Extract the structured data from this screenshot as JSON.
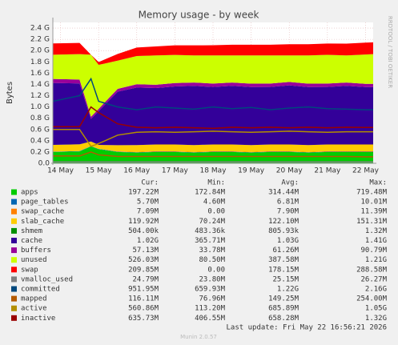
{
  "chart_data": {
    "type": "area",
    "title": "Memory usage - by week",
    "y_label": "Bytes",
    "side_label": "RRDTOOL / TOBI OETIKER",
    "last_update": "Last update: Fri May 22 16:56:21 2026",
    "footer": "Munin 2.0.57",
    "stat_headers": [
      "Cur:",
      "Min:",
      "Avg:",
      "Max:"
    ],
    "x": [
      13.8,
      14.5,
      14.8,
      15.0,
      15.5,
      16,
      16.5,
      17,
      17.5,
      18,
      18.5,
      19,
      19.5,
      20,
      20.5,
      21,
      21.5,
      22,
      22.2
    ],
    "xlim": [
      13.8,
      22.2
    ],
    "xticks": [
      {
        "value": 14,
        "label": "14 May"
      },
      {
        "value": 15,
        "label": "15 May"
      },
      {
        "value": 16,
        "label": "16 May"
      },
      {
        "value": 17,
        "label": "17 May"
      },
      {
        "value": 18,
        "label": "18 May"
      },
      {
        "value": 19,
        "label": "19 May"
      },
      {
        "value": 20,
        "label": "20 May"
      },
      {
        "value": 21,
        "label": "21 May"
      },
      {
        "value": 22,
        "label": "22 May"
      }
    ],
    "ylim": [
      0,
      2.5
    ],
    "yticks": [
      {
        "value": 0,
        "label": "0.0"
      },
      {
        "value": 0.2,
        "label": "0.2 G"
      },
      {
        "value": 0.4,
        "label": "0.4 G"
      },
      {
        "value": 0.6,
        "label": "0.6 G"
      },
      {
        "value": 0.8,
        "label": "0.8 G"
      },
      {
        "value": 1.0,
        "label": "1.0 G"
      },
      {
        "value": 1.2,
        "label": "1.2 G"
      },
      {
        "value": 1.4,
        "label": "1.4 G"
      },
      {
        "value": 1.6,
        "label": "1.6 G"
      },
      {
        "value": 1.8,
        "label": "1.8 G"
      },
      {
        "value": 2.0,
        "label": "2.0 G"
      },
      {
        "value": 2.2,
        "label": "2.2 G"
      },
      {
        "value": 2.4,
        "label": "2.4 G"
      }
    ],
    "grid": true,
    "series": [
      {
        "name": "apps",
        "color": "#00cc00",
        "stacked": true,
        "cur": "197.22M",
        "min": "172.84M",
        "avg": "314.44M",
        "max": "719.48M",
        "values": [
          0.2,
          0.21,
          0.3,
          0.25,
          0.2,
          0.19,
          0.2,
          0.2,
          0.19,
          0.2,
          0.2,
          0.19,
          0.2,
          0.2,
          0.19,
          0.2,
          0.2,
          0.2,
          0.2
        ]
      },
      {
        "name": "page_tables",
        "color": "#0066b3",
        "stacked": true,
        "cur": "5.70M",
        "min": "4.60M",
        "avg": "6.81M",
        "max": "10.01M",
        "values": [
          0.006,
          0.006,
          0.006,
          0.006,
          0.006,
          0.006,
          0.006,
          0.006,
          0.006,
          0.006,
          0.006,
          0.006,
          0.006,
          0.006,
          0.006,
          0.006,
          0.006,
          0.006,
          0.006
        ]
      },
      {
        "name": "swap_cache",
        "color": "#ff8000",
        "stacked": true,
        "cur": "7.09M",
        "min": "0.00",
        "avg": "7.90M",
        "max": "11.39M",
        "values": [
          0,
          0,
          0,
          0,
          0.005,
          0.007,
          0.008,
          0.007,
          0.007,
          0.008,
          0.007,
          0.007,
          0.008,
          0.007,
          0.007,
          0.008,
          0.007,
          0.007,
          0.007
        ]
      },
      {
        "name": "slab_cache",
        "color": "#ffcc00",
        "stacked": true,
        "cur": "119.92M",
        "min": "70.24M",
        "avg": "122.10M",
        "max": "151.31M",
        "values": [
          0.12,
          0.12,
          0.08,
          0.07,
          0.11,
          0.12,
          0.12,
          0.12,
          0.12,
          0.12,
          0.12,
          0.12,
          0.12,
          0.12,
          0.12,
          0.12,
          0.12,
          0.12,
          0.12
        ]
      },
      {
        "name": "shmem",
        "color": "#008f00",
        "stacked": true,
        "cur": "504.00k",
        "min": "483.36k",
        "avg": "805.93k",
        "max": "1.32M",
        "values": [
          0.0005,
          0.0005,
          0.0005,
          0.0005,
          0.0005,
          0.0005,
          0.0005,
          0.0005,
          0.0005,
          0.0005,
          0.0005,
          0.0005,
          0.0005,
          0.0005,
          0.0005,
          0.0005,
          0.0005,
          0.0005,
          0.0005
        ]
      },
      {
        "name": "cache",
        "color": "#330099",
        "stacked": true,
        "cur": "1.02G",
        "min": "365.71M",
        "avg": "1.03G",
        "max": "1.41G",
        "values": [
          1.1,
          1.08,
          0.4,
          0.6,
          0.95,
          1.02,
          1.0,
          1.03,
          1.05,
          1.02,
          1.04,
          1.03,
          1.02,
          1.05,
          1.03,
          1.02,
          1.04,
          1.02,
          1.02
        ]
      },
      {
        "name": "buffers",
        "color": "#990099",
        "stacked": true,
        "cur": "57.13M",
        "min": "33.78M",
        "avg": "61.26M",
        "max": "90.79M",
        "values": [
          0.07,
          0.07,
          0.04,
          0.04,
          0.05,
          0.06,
          0.06,
          0.06,
          0.06,
          0.06,
          0.06,
          0.06,
          0.06,
          0.06,
          0.06,
          0.06,
          0.06,
          0.057,
          0.057
        ]
      },
      {
        "name": "unused",
        "color": "#ccff00",
        "stacked": true,
        "cur": "526.03M",
        "min": "80.50M",
        "avg": "387.58M",
        "max": "1.21G",
        "values": [
          0.43,
          0.45,
          1.1,
          0.78,
          0.5,
          0.5,
          0.52,
          0.5,
          0.48,
          0.5,
          0.48,
          0.5,
          0.5,
          0.47,
          0.5,
          0.51,
          0.48,
          0.52,
          0.526
        ]
      },
      {
        "name": "swap",
        "color": "#ff0000",
        "stacked": true,
        "cur": "209.85M",
        "min": "0.00",
        "avg": "178.15M",
        "max": "288.58M",
        "values": [
          0.2,
          0.2,
          0,
          0.05,
          0.12,
          0.15,
          0.16,
          0.17,
          0.18,
          0.18,
          0.19,
          0.19,
          0.19,
          0.2,
          0.2,
          0.2,
          0.21,
          0.21,
          0.21
        ]
      },
      {
        "name": "vmalloc_used",
        "color": "#808080",
        "stacked": false,
        "cur": "24.79M",
        "min": "23.80M",
        "avg": "25.15M",
        "max": "26.27M",
        "values": [
          0.024,
          0.024,
          0.024,
          0.024,
          0.024,
          0.024,
          0.024,
          0.024,
          0.024,
          0.024,
          0.024,
          0.024,
          0.024,
          0.024,
          0.024,
          0.024,
          0.024,
          0.024,
          0.024
        ]
      },
      {
        "name": "committed",
        "color": "#00487d",
        "stacked": false,
        "cur": "951.95M",
        "min": "659.93M",
        "avg": "1.22G",
        "max": "2.16G",
        "values": [
          1.1,
          1.2,
          1.5,
          1.1,
          1.0,
          0.95,
          1.0,
          0.98,
          0.96,
          1.0,
          0.97,
          0.99,
          0.95,
          0.98,
          1.0,
          0.97,
          0.96,
          0.95,
          0.95
        ]
      },
      {
        "name": "mapped",
        "color": "#b35a00",
        "stacked": false,
        "cur": "116.11M",
        "min": "76.96M",
        "avg": "149.25M",
        "max": "254.00M",
        "values": [
          0.13,
          0.13,
          0.2,
          0.15,
          0.12,
          0.12,
          0.12,
          0.12,
          0.12,
          0.12,
          0.12,
          0.12,
          0.12,
          0.12,
          0.12,
          0.12,
          0.12,
          0.116,
          0.116
        ]
      },
      {
        "name": "active",
        "color": "#b38f00",
        "stacked": false,
        "cur": "560.86M",
        "min": "113.20M",
        "avg": "685.89M",
        "max": "1.05G",
        "values": [
          0.6,
          0.6,
          0.3,
          0.35,
          0.5,
          0.55,
          0.56,
          0.55,
          0.56,
          0.57,
          0.56,
          0.55,
          0.56,
          0.57,
          0.56,
          0.55,
          0.56,
          0.56,
          0.56
        ]
      },
      {
        "name": "inactive",
        "color": "#990000",
        "stacked": false,
        "cur": "635.73M",
        "min": "406.55M",
        "avg": "658.28M",
        "max": "1.32G",
        "values": [
          0.65,
          0.65,
          1.0,
          0.9,
          0.7,
          0.64,
          0.63,
          0.64,
          0.63,
          0.62,
          0.64,
          0.63,
          0.64,
          0.63,
          0.64,
          0.63,
          0.64,
          0.636,
          0.636
        ]
      }
    ]
  }
}
